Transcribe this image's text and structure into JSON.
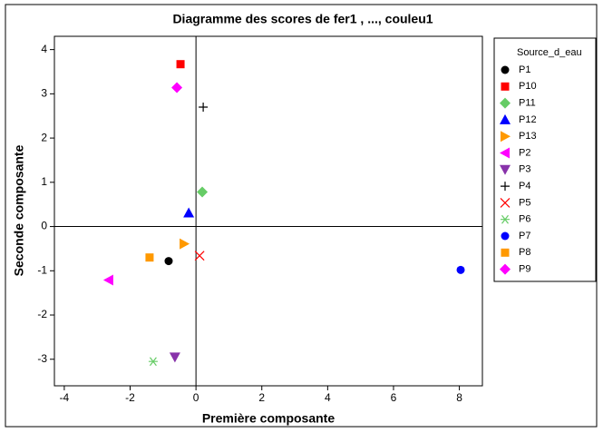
{
  "chart_data": {
    "type": "scatter",
    "title": "Diagramme des scores de fer1 , ..., couleu1",
    "xlabel": "Première composante",
    "ylabel": "Seconde composante",
    "legend_title": "Source_d_eau",
    "legend": "right",
    "xlim": [
      -4.3,
      8.7
    ],
    "xticks": [
      -4,
      -2,
      0,
      2,
      4,
      6,
      8
    ],
    "ylim": [
      -3.6,
      4.3
    ],
    "yticks": [
      -3,
      -2,
      -1,
      0,
      1,
      2,
      3,
      4
    ],
    "reference_lines": {
      "x": 0,
      "y": 0
    },
    "series": [
      {
        "name": "P1",
        "color": "#000000",
        "marker": "circle",
        "x": -0.83,
        "y": -0.78
      },
      {
        "name": "P10",
        "color": "#ff0000",
        "marker": "square",
        "x": -0.47,
        "y": 3.67
      },
      {
        "name": "P11",
        "color": "#66cc66",
        "marker": "diamond",
        "x": 0.19,
        "y": 0.78
      },
      {
        "name": "P12",
        "color": "#0000ff",
        "marker": "triangle-up",
        "x": -0.22,
        "y": 0.31
      },
      {
        "name": "P13",
        "color": "#ff9900",
        "marker": "triangle-right",
        "x": -0.36,
        "y": -0.39
      },
      {
        "name": "P2",
        "color": "#ff00ff",
        "marker": "triangle-left",
        "x": -2.65,
        "y": -1.21
      },
      {
        "name": "P3",
        "color": "#8833aa",
        "marker": "triangle-down",
        "x": -0.64,
        "y": -2.95
      },
      {
        "name": "P4",
        "color": "#000000",
        "marker": "plus",
        "x": 0.22,
        "y": 2.7
      },
      {
        "name": "P5",
        "color": "#ff0000",
        "marker": "x",
        "x": 0.11,
        "y": -0.66
      },
      {
        "name": "P6",
        "color": "#66cc66",
        "marker": "asterisk",
        "x": -1.3,
        "y": -3.05
      },
      {
        "name": "P7",
        "color": "#0000ff",
        "marker": "circle",
        "x": 8.04,
        "y": -0.98
      },
      {
        "name": "P8",
        "color": "#ff9900",
        "marker": "square",
        "x": -1.41,
        "y": -0.7
      },
      {
        "name": "P9",
        "color": "#ff00ff",
        "marker": "diamond",
        "x": -0.58,
        "y": 3.14
      }
    ]
  }
}
